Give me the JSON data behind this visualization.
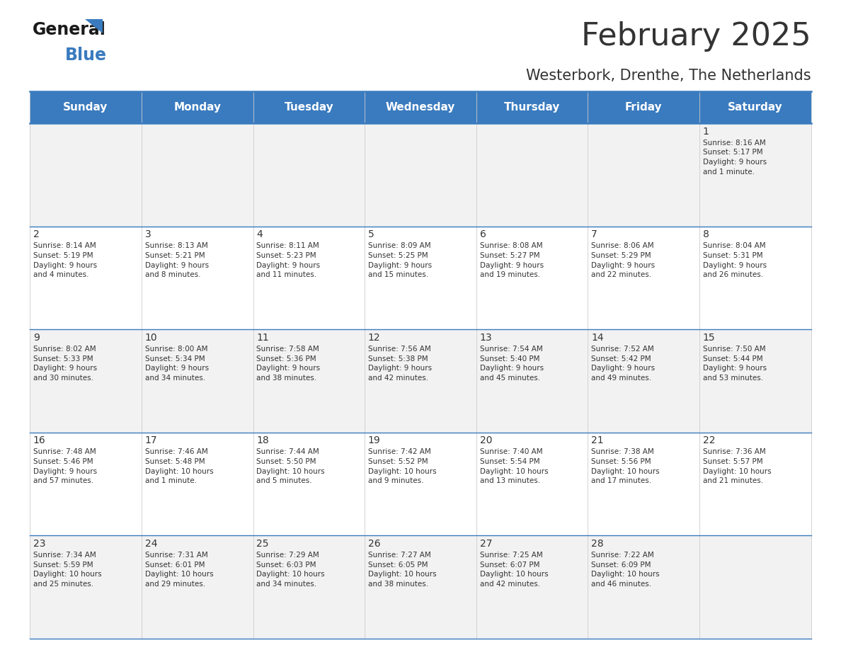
{
  "title": "February 2025",
  "subtitle": "Westerbork, Drenthe, The Netherlands",
  "header_color": "#3a7bbf",
  "header_text_color": "#ffffff",
  "bg_color": "#ffffff",
  "border_color": "#3a7bbf",
  "text_color": "#333333",
  "days_of_week": [
    "Sunday",
    "Monday",
    "Tuesday",
    "Wednesday",
    "Thursday",
    "Friday",
    "Saturday"
  ],
  "weeks": [
    [
      {
        "day": null,
        "info": null
      },
      {
        "day": null,
        "info": null
      },
      {
        "day": null,
        "info": null
      },
      {
        "day": null,
        "info": null
      },
      {
        "day": null,
        "info": null
      },
      {
        "day": null,
        "info": null
      },
      {
        "day": 1,
        "info": "Sunrise: 8:16 AM\nSunset: 5:17 PM\nDaylight: 9 hours\nand 1 minute."
      }
    ],
    [
      {
        "day": 2,
        "info": "Sunrise: 8:14 AM\nSunset: 5:19 PM\nDaylight: 9 hours\nand 4 minutes."
      },
      {
        "day": 3,
        "info": "Sunrise: 8:13 AM\nSunset: 5:21 PM\nDaylight: 9 hours\nand 8 minutes."
      },
      {
        "day": 4,
        "info": "Sunrise: 8:11 AM\nSunset: 5:23 PM\nDaylight: 9 hours\nand 11 minutes."
      },
      {
        "day": 5,
        "info": "Sunrise: 8:09 AM\nSunset: 5:25 PM\nDaylight: 9 hours\nand 15 minutes."
      },
      {
        "day": 6,
        "info": "Sunrise: 8:08 AM\nSunset: 5:27 PM\nDaylight: 9 hours\nand 19 minutes."
      },
      {
        "day": 7,
        "info": "Sunrise: 8:06 AM\nSunset: 5:29 PM\nDaylight: 9 hours\nand 22 minutes."
      },
      {
        "day": 8,
        "info": "Sunrise: 8:04 AM\nSunset: 5:31 PM\nDaylight: 9 hours\nand 26 minutes."
      }
    ],
    [
      {
        "day": 9,
        "info": "Sunrise: 8:02 AM\nSunset: 5:33 PM\nDaylight: 9 hours\nand 30 minutes."
      },
      {
        "day": 10,
        "info": "Sunrise: 8:00 AM\nSunset: 5:34 PM\nDaylight: 9 hours\nand 34 minutes."
      },
      {
        "day": 11,
        "info": "Sunrise: 7:58 AM\nSunset: 5:36 PM\nDaylight: 9 hours\nand 38 minutes."
      },
      {
        "day": 12,
        "info": "Sunrise: 7:56 AM\nSunset: 5:38 PM\nDaylight: 9 hours\nand 42 minutes."
      },
      {
        "day": 13,
        "info": "Sunrise: 7:54 AM\nSunset: 5:40 PM\nDaylight: 9 hours\nand 45 minutes."
      },
      {
        "day": 14,
        "info": "Sunrise: 7:52 AM\nSunset: 5:42 PM\nDaylight: 9 hours\nand 49 minutes."
      },
      {
        "day": 15,
        "info": "Sunrise: 7:50 AM\nSunset: 5:44 PM\nDaylight: 9 hours\nand 53 minutes."
      }
    ],
    [
      {
        "day": 16,
        "info": "Sunrise: 7:48 AM\nSunset: 5:46 PM\nDaylight: 9 hours\nand 57 minutes."
      },
      {
        "day": 17,
        "info": "Sunrise: 7:46 AM\nSunset: 5:48 PM\nDaylight: 10 hours\nand 1 minute."
      },
      {
        "day": 18,
        "info": "Sunrise: 7:44 AM\nSunset: 5:50 PM\nDaylight: 10 hours\nand 5 minutes."
      },
      {
        "day": 19,
        "info": "Sunrise: 7:42 AM\nSunset: 5:52 PM\nDaylight: 10 hours\nand 9 minutes."
      },
      {
        "day": 20,
        "info": "Sunrise: 7:40 AM\nSunset: 5:54 PM\nDaylight: 10 hours\nand 13 minutes."
      },
      {
        "day": 21,
        "info": "Sunrise: 7:38 AM\nSunset: 5:56 PM\nDaylight: 10 hours\nand 17 minutes."
      },
      {
        "day": 22,
        "info": "Sunrise: 7:36 AM\nSunset: 5:57 PM\nDaylight: 10 hours\nand 21 minutes."
      }
    ],
    [
      {
        "day": 23,
        "info": "Sunrise: 7:34 AM\nSunset: 5:59 PM\nDaylight: 10 hours\nand 25 minutes."
      },
      {
        "day": 24,
        "info": "Sunrise: 7:31 AM\nSunset: 6:01 PM\nDaylight: 10 hours\nand 29 minutes."
      },
      {
        "day": 25,
        "info": "Sunrise: 7:29 AM\nSunset: 6:03 PM\nDaylight: 10 hours\nand 34 minutes."
      },
      {
        "day": 26,
        "info": "Sunrise: 7:27 AM\nSunset: 6:05 PM\nDaylight: 10 hours\nand 38 minutes."
      },
      {
        "day": 27,
        "info": "Sunrise: 7:25 AM\nSunset: 6:07 PM\nDaylight: 10 hours\nand 42 minutes."
      },
      {
        "day": 28,
        "info": "Sunrise: 7:22 AM\nSunset: 6:09 PM\nDaylight: 10 hours\nand 46 minutes."
      },
      {
        "day": null,
        "info": null
      }
    ]
  ]
}
